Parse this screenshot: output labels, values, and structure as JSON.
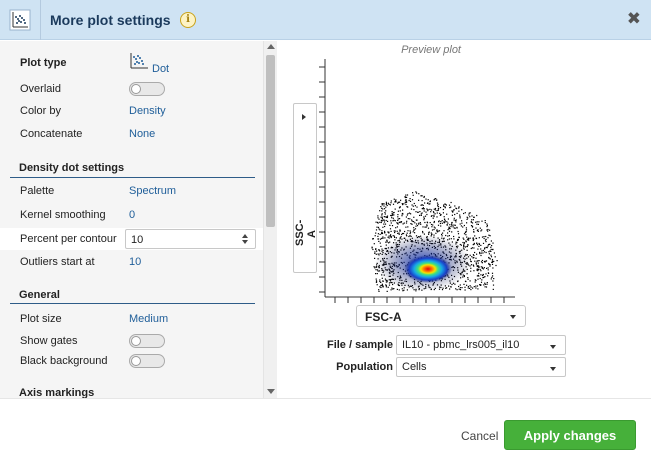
{
  "dialog": {
    "title": "More plot settings",
    "info_icon": "info-icon",
    "close_icon": "close-icon",
    "close_glyph": "✖"
  },
  "settings": {
    "plot_type": {
      "label": "Plot type",
      "value": "Dot",
      "icon": "dot-plot-icon"
    },
    "overlaid": {
      "label": "Overlaid",
      "state": "off"
    },
    "color_by": {
      "label": "Color by",
      "value": "Density"
    },
    "concatenate": {
      "label": "Concatenate",
      "value": "None"
    },
    "density_section": {
      "title": "Density dot settings"
    },
    "palette": {
      "label": "Palette",
      "value": "Spectrum"
    },
    "kernel_smoothing": {
      "label": "Kernel smoothing",
      "value": "0"
    },
    "percent_per_contour": {
      "label": "Percent per contour",
      "value": "10"
    },
    "outliers_start_at": {
      "label": "Outliers start at",
      "value": "10"
    },
    "general_section": {
      "title": "General"
    },
    "plot_size": {
      "label": "Plot size",
      "value": "Medium"
    },
    "show_gates": {
      "label": "Show gates",
      "state": "off"
    },
    "black_background": {
      "label": "Black background",
      "state": "off"
    },
    "axis_section": {
      "title": "Axis markings"
    }
  },
  "preview": {
    "title": "Preview plot",
    "y_axis": "SSC-A",
    "x_axis": "FSC-A",
    "file_sample_label": "File / sample",
    "file_sample_value": "IL10 - pbmc_lrs005_il10",
    "population_label": "Population",
    "population_value": "Cells"
  },
  "footer": {
    "cancel_label": "Cancel",
    "apply_label": "Apply changes"
  },
  "colors": {
    "accent": "#1f5e99",
    "titlebar": "#cfe3f3",
    "apply": "#46b03a"
  }
}
